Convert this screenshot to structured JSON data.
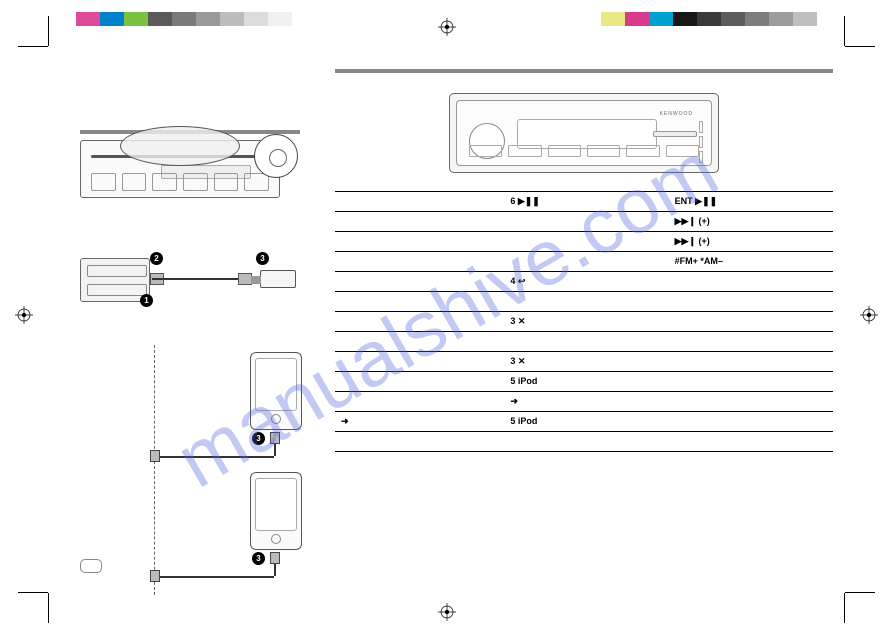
{
  "watermark": "manualshive.com",
  "color_swatches_left": [
    "#e04a9a",
    "#0083c9",
    "#7cc242",
    "#5a5a5a",
    "#7a7a7a",
    "#9a9a9a",
    "#bcbcbc",
    "#dcdcdc",
    "#f0f0f0"
  ],
  "color_swatches_right": [
    "#e8e887",
    "#d63c8a",
    "#00a0d0",
    "#181818",
    "#3a3a3a",
    "#5c5c5c",
    "#7d7d7d",
    "#9d9d9d",
    "#bfbfbf"
  ],
  "faceplate": {
    "brand": "KENWOOD"
  },
  "table": {
    "head": {
      "c1": "",
      "c2_pre": "6 ",
      "c2_sym": "▶❚❚",
      "c3_pre": "ENT ",
      "c3_sym": "▶❚❚"
    },
    "rows": [
      {
        "c1": "",
        "c2": "",
        "c3": "▶▶❙ (+)"
      },
      {
        "c1": "",
        "c2": "",
        "c3": "▶▶❙ (+)"
      },
      {
        "c1": "",
        "c2": "",
        "c3": "#FM+   *AM–"
      },
      {
        "c1": "",
        "c2": "4 ↩",
        "c3": ""
      },
      {
        "c1": "",
        "c2": "",
        "c3": ""
      },
      {
        "c1": "",
        "c2": "3 ✕",
        "c3": ""
      },
      {
        "c1": "",
        "c2": "",
        "c3": ""
      },
      {
        "c1": "",
        "c2": "3 ✕",
        "c3": ""
      },
      {
        "c1": "",
        "c2": "5 iPod",
        "c3": ""
      },
      {
        "c1": "",
        "c2": "➜",
        "c3": ""
      },
      {
        "c1": "➜",
        "c2": "5 iPod",
        "c3": ""
      },
      {
        "c1": "",
        "c2": "",
        "c3": ""
      }
    ]
  },
  "badges": {
    "b1": "1",
    "b2": "2",
    "b3": "3"
  }
}
